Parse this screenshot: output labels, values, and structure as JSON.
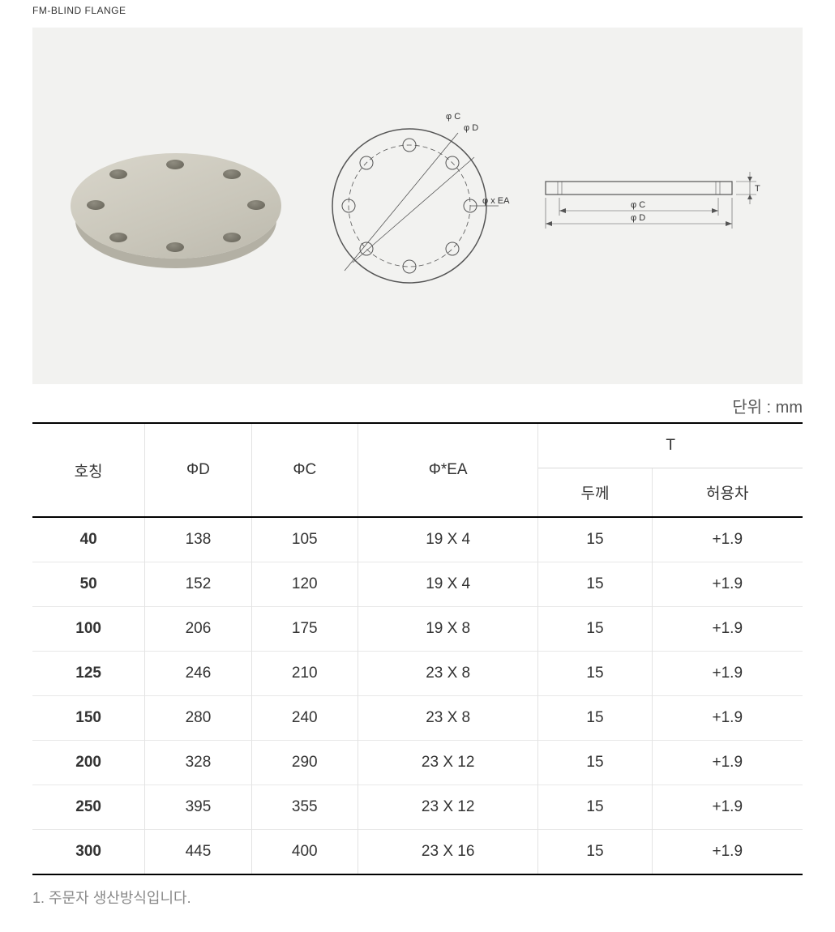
{
  "title": "FM-BLIND FLANGE",
  "unit_note": "단위 :  mm",
  "diagram": {
    "phi_c_label": "φ C",
    "phi_d_label": "φ D",
    "phi_ea_label": "φ x EA",
    "t_label": "T"
  },
  "table": {
    "columns": {
      "name": "호칭",
      "phi_d": "ΦD",
      "phi_c": "ΦC",
      "phi_ea": "Φ*EA",
      "t_group": "T",
      "t_thick": "두께",
      "t_tol": "허용차"
    },
    "rows": [
      {
        "name": "40",
        "phi_d": "138",
        "phi_c": "105",
        "phi_ea": "19 X 4",
        "thick": "15",
        "tol": "+1.9"
      },
      {
        "name": "50",
        "phi_d": "152",
        "phi_c": "120",
        "phi_ea": "19 X 4",
        "thick": "15",
        "tol": "+1.9"
      },
      {
        "name": "100",
        "phi_d": "206",
        "phi_c": "175",
        "phi_ea": "19 X 8",
        "thick": "15",
        "tol": "+1.9"
      },
      {
        "name": "125",
        "phi_d": "246",
        "phi_c": "210",
        "phi_ea": "23 X 8",
        "thick": "15",
        "tol": "+1.9"
      },
      {
        "name": "150",
        "phi_d": "280",
        "phi_c": "240",
        "phi_ea": "23 X 8",
        "thick": "15",
        "tol": "+1.9"
      },
      {
        "name": "200",
        "phi_d": "328",
        "phi_c": "290",
        "phi_ea": "23 X 12",
        "thick": "15",
        "tol": "+1.9"
      },
      {
        "name": "250",
        "phi_d": "395",
        "phi_c": "355",
        "phi_ea": "23 X 12",
        "thick": "15",
        "tol": "+1.9"
      },
      {
        "name": "300",
        "phi_d": "445",
        "phi_c": "400",
        "phi_ea": "23 X 16",
        "thick": "15",
        "tol": "+1.9"
      }
    ]
  },
  "footnote": "1. 주문자 생산방식입니다."
}
